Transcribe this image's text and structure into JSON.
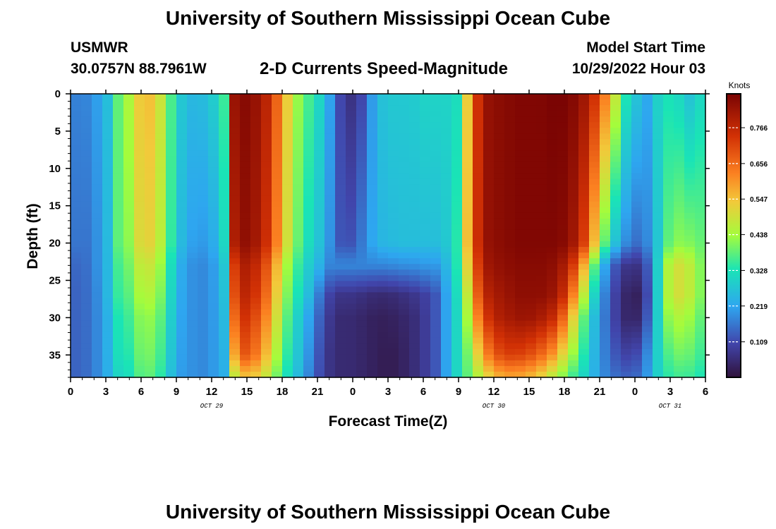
{
  "header": {
    "title": "University of Southern Mississippi Ocean Cube",
    "station_name": "USMWR",
    "station_coords": "30.0757N  88.7961W",
    "plot_title": "2-D Currents Speed-Magnitude",
    "start_label": "Model Start Time",
    "start_value": "10/29/2022 Hour 03"
  },
  "footer": {
    "title": "University of Southern Mississippi Ocean Cube"
  },
  "chart_data": {
    "type": "heatmap",
    "xlabel": "Forecast Time(Z)",
    "ylabel": "Depth (ft)",
    "x_ticks": [
      "0",
      "3",
      "6",
      "9",
      "12",
      "15",
      "18",
      "21",
      "0",
      "3",
      "6",
      "9",
      "12",
      "15",
      "18",
      "21",
      "0",
      "3",
      "6"
    ],
    "x_hours": [
      0,
      3,
      6,
      9,
      12,
      15,
      18,
      21,
      24,
      27,
      30,
      33,
      36,
      39,
      42,
      45,
      48,
      51,
      54
    ],
    "date_labels": [
      {
        "text": "OCT 29",
        "hour": 12
      },
      {
        "text": "OCT 30",
        "hour": 36
      },
      {
        "text": "OCT 31",
        "hour": 51
      }
    ],
    "y_ticks": [
      0,
      5,
      10,
      15,
      20,
      25,
      30,
      35
    ],
    "ylim": [
      0,
      38
    ],
    "xlim": [
      0,
      54
    ],
    "colorbar": {
      "label": "Knots",
      "ticks": [
        0.109,
        0.219,
        0.328,
        0.438,
        0.547,
        0.656,
        0.766
      ],
      "range": [
        0.0,
        0.87
      ]
    },
    "depth_levels": [
      0,
      20,
      23,
      27,
      30,
      35,
      38
    ],
    "time_hours": [
      0,
      1,
      2,
      3,
      4,
      5,
      6,
      7,
      8,
      9,
      10,
      11,
      12,
      13,
      14,
      15,
      16,
      17,
      18,
      19,
      20,
      21,
      22,
      23,
      24,
      25,
      26,
      27,
      28,
      29,
      30,
      31,
      32,
      33,
      34,
      35,
      36,
      37,
      38,
      39,
      40,
      41,
      42,
      43,
      44,
      45,
      46,
      47,
      48,
      49,
      50,
      51,
      52,
      53,
      54
    ],
    "speed_knots": [
      [
        0.18,
        0.17,
        0.2,
        0.24,
        0.38,
        0.45,
        0.55,
        0.55,
        0.45,
        0.3,
        0.25,
        0.25,
        0.28,
        0.33,
        0.85,
        0.85,
        0.82,
        0.75,
        0.6,
        0.45,
        0.38,
        0.32,
        0.22,
        0.1,
        0.06,
        0.12,
        0.25,
        0.28,
        0.28,
        0.28,
        0.3,
        0.3,
        0.3,
        0.32,
        0.6,
        0.82,
        0.84,
        0.85,
        0.86,
        0.86,
        0.86,
        0.87,
        0.87,
        0.85,
        0.8,
        0.7,
        0.55,
        0.35,
        0.28,
        0.22,
        0.3,
        0.33,
        0.3,
        0.25,
        0.35
      ],
      [
        0.17,
        0.15,
        0.18,
        0.23,
        0.38,
        0.42,
        0.52,
        0.52,
        0.43,
        0.28,
        0.22,
        0.2,
        0.22,
        0.28,
        0.82,
        0.84,
        0.8,
        0.72,
        0.55,
        0.42,
        0.33,
        0.28,
        0.2,
        0.12,
        0.12,
        0.18,
        0.24,
        0.25,
        0.26,
        0.26,
        0.26,
        0.26,
        0.28,
        0.35,
        0.62,
        0.82,
        0.84,
        0.85,
        0.86,
        0.86,
        0.86,
        0.86,
        0.85,
        0.8,
        0.68,
        0.45,
        0.3,
        0.2,
        0.15,
        0.18,
        0.28,
        0.4,
        0.42,
        0.4,
        0.38
      ],
      [
        0.15,
        0.14,
        0.18,
        0.23,
        0.36,
        0.4,
        0.48,
        0.48,
        0.4,
        0.25,
        0.2,
        0.18,
        0.2,
        0.25,
        0.75,
        0.8,
        0.75,
        0.66,
        0.48,
        0.38,
        0.3,
        0.25,
        0.18,
        0.18,
        0.18,
        0.18,
        0.18,
        0.18,
        0.19,
        0.19,
        0.2,
        0.2,
        0.25,
        0.35,
        0.58,
        0.8,
        0.83,
        0.84,
        0.85,
        0.85,
        0.85,
        0.84,
        0.8,
        0.7,
        0.5,
        0.28,
        0.15,
        0.08,
        0.06,
        0.12,
        0.3,
        0.48,
        0.5,
        0.45,
        0.38
      ],
      [
        0.14,
        0.14,
        0.17,
        0.23,
        0.35,
        0.38,
        0.45,
        0.45,
        0.38,
        0.24,
        0.2,
        0.18,
        0.2,
        0.24,
        0.72,
        0.78,
        0.72,
        0.62,
        0.45,
        0.35,
        0.28,
        0.18,
        0.1,
        0.07,
        0.07,
        0.06,
        0.05,
        0.05,
        0.06,
        0.07,
        0.09,
        0.12,
        0.22,
        0.33,
        0.52,
        0.76,
        0.8,
        0.82,
        0.84,
        0.84,
        0.84,
        0.82,
        0.75,
        0.58,
        0.4,
        0.22,
        0.12,
        0.05,
        0.02,
        0.1,
        0.3,
        0.48,
        0.5,
        0.45,
        0.38
      ],
      [
        0.14,
        0.14,
        0.17,
        0.22,
        0.33,
        0.36,
        0.42,
        0.42,
        0.36,
        0.23,
        0.2,
        0.18,
        0.2,
        0.23,
        0.68,
        0.75,
        0.68,
        0.58,
        0.42,
        0.32,
        0.24,
        0.15,
        0.08,
        0.05,
        0.05,
        0.04,
        0.03,
        0.03,
        0.04,
        0.05,
        0.08,
        0.12,
        0.22,
        0.32,
        0.48,
        0.7,
        0.78,
        0.8,
        0.82,
        0.82,
        0.8,
        0.76,
        0.65,
        0.48,
        0.33,
        0.2,
        0.12,
        0.05,
        0.03,
        0.12,
        0.3,
        0.44,
        0.45,
        0.42,
        0.36
      ],
      [
        0.14,
        0.14,
        0.17,
        0.22,
        0.32,
        0.34,
        0.4,
        0.4,
        0.34,
        0.22,
        0.2,
        0.18,
        0.2,
        0.22,
        0.6,
        0.7,
        0.62,
        0.52,
        0.38,
        0.3,
        0.22,
        0.13,
        0.07,
        0.05,
        0.05,
        0.04,
        0.03,
        0.02,
        0.03,
        0.05,
        0.08,
        0.12,
        0.22,
        0.32,
        0.42,
        0.58,
        0.68,
        0.72,
        0.72,
        0.7,
        0.66,
        0.6,
        0.5,
        0.4,
        0.3,
        0.2,
        0.14,
        0.1,
        0.1,
        0.18,
        0.3,
        0.38,
        0.4,
        0.38,
        0.34
      ],
      [
        0.14,
        0.14,
        0.17,
        0.22,
        0.3,
        0.32,
        0.38,
        0.38,
        0.32,
        0.21,
        0.2,
        0.18,
        0.2,
        0.22,
        0.48,
        0.55,
        0.52,
        0.45,
        0.35,
        0.28,
        0.2,
        0.12,
        0.07,
        0.05,
        0.05,
        0.04,
        0.03,
        0.02,
        0.03,
        0.05,
        0.08,
        0.12,
        0.22,
        0.32,
        0.4,
        0.48,
        0.55,
        0.58,
        0.58,
        0.56,
        0.52,
        0.46,
        0.4,
        0.34,
        0.28,
        0.2,
        0.16,
        0.14,
        0.14,
        0.2,
        0.3,
        0.35,
        0.36,
        0.35,
        0.32
      ]
    ]
  }
}
